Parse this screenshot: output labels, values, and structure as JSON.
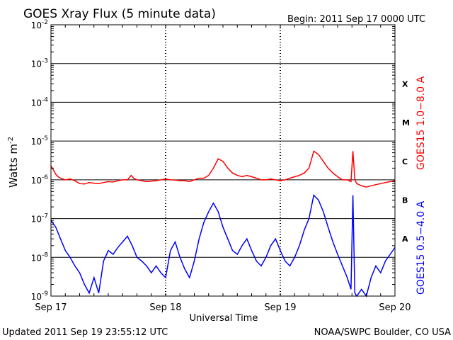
{
  "header": {
    "title": "GOES Xray Flux (5 minute data)",
    "begin": "Begin:  2011 Sep 17 0000 UTC"
  },
  "footer": {
    "updated": "Updated 2011 Sep 19 23:55:12 UTC",
    "credit": "NOAA/SWPC Boulder, CO USA"
  },
  "colors": {
    "long_channel": "#ff0000",
    "short_channel": "#0000ff",
    "grid": "#000000"
  },
  "chart_data": {
    "type": "line",
    "title": "GOES Xray Flux (5 minute data)",
    "xlabel": "Universal Time",
    "ylabel_base": "Watts m",
    "ylabel_exp": "-2",
    "y_scale": "log",
    "ylim": [
      1e-09,
      0.01
    ],
    "xlim": [
      0,
      72
    ],
    "x_unit": "hours since 2011 Sep 17 0000 UTC",
    "x_ticks": [
      {
        "x": 0,
        "label": "Sep 17"
      },
      {
        "x": 24,
        "label": "Sep 18"
      },
      {
        "x": 48,
        "label": "Sep 19"
      },
      {
        "x": 72,
        "label": "Sep 20"
      }
    ],
    "y_ticks": [
      {
        "exp": -9
      },
      {
        "exp": -8
      },
      {
        "exp": -7
      },
      {
        "exp": -6
      },
      {
        "exp": -5
      },
      {
        "exp": -4
      },
      {
        "exp": -3
      },
      {
        "exp": -2
      }
    ],
    "flare_classes": [
      {
        "label": "X",
        "y": 0.0003
      },
      {
        "label": "M",
        "y": 3e-05
      },
      {
        "label": "C",
        "y": 3e-06
      },
      {
        "label": "B",
        "y": 3e-07
      },
      {
        "label": "A",
        "y": 3e-08
      }
    ],
    "grid": true,
    "series": [
      {
        "name": "GOES15 1.0−8.0 A",
        "color": "#ff0000",
        "points": [
          [
            0,
            2.3e-06
          ],
          [
            0.5,
            1.8e-06
          ],
          [
            1,
            1.4e-06
          ],
          [
            1.5,
            1.2e-06
          ],
          [
            2,
            1.1e-06
          ],
          [
            3,
            1e-06
          ],
          [
            4,
            1.05e-06
          ],
          [
            5,
            9.5e-07
          ],
          [
            6,
            8e-07
          ],
          [
            7,
            7.8e-07
          ],
          [
            8,
            8.5e-07
          ],
          [
            9,
            8.2e-07
          ],
          [
            10,
            8e-07
          ],
          [
            11,
            8.5e-07
          ],
          [
            12,
            9e-07
          ],
          [
            13,
            8.8e-07
          ],
          [
            14,
            9.5e-07
          ],
          [
            15,
            1e-06
          ],
          [
            16,
            1e-06
          ],
          [
            16.8,
            1.3e-06
          ],
          [
            17.3,
            1.1e-06
          ],
          [
            18,
            1e-06
          ],
          [
            19,
            9.5e-07
          ],
          [
            20,
            9e-07
          ],
          [
            21,
            9.2e-07
          ],
          [
            22,
            9.5e-07
          ],
          [
            23,
            1e-06
          ],
          [
            24,
            1.05e-06
          ],
          [
            25,
            1e-06
          ],
          [
            26,
            9.8e-07
          ],
          [
            27,
            9.5e-07
          ],
          [
            28,
            9.5e-07
          ],
          [
            29,
            9e-07
          ],
          [
            30,
            1e-06
          ],
          [
            31,
            1.1e-06
          ],
          [
            32,
            1.1e-06
          ],
          [
            33,
            1.3e-06
          ],
          [
            34,
            2e-06
          ],
          [
            35,
            3.5e-06
          ],
          [
            36,
            3e-06
          ],
          [
            37,
            2e-06
          ],
          [
            38,
            1.5e-06
          ],
          [
            39,
            1.3e-06
          ],
          [
            40,
            1.2e-06
          ],
          [
            41,
            1.3e-06
          ],
          [
            42,
            1.2e-06
          ],
          [
            43,
            1.1e-06
          ],
          [
            44,
            1e-06
          ],
          [
            45,
            1e-06
          ],
          [
            46,
            1.05e-06
          ],
          [
            47,
            1e-06
          ],
          [
            48,
            9.5e-07
          ],
          [
            49,
            1e-06
          ],
          [
            50,
            1.1e-06
          ],
          [
            51,
            1.2e-06
          ],
          [
            52,
            1.3e-06
          ],
          [
            53,
            1.5e-06
          ],
          [
            54,
            2e-06
          ],
          [
            55,
            5.5e-06
          ],
          [
            56,
            4.5e-06
          ],
          [
            57,
            3e-06
          ],
          [
            58,
            2e-06
          ],
          [
            59,
            1.5e-06
          ],
          [
            60,
            1.2e-06
          ],
          [
            61,
            1e-06
          ],
          [
            62,
            1e-06
          ],
          [
            62.8,
            9e-07
          ],
          [
            63.2,
            5.5e-06
          ],
          [
            63.6,
            1e-06
          ],
          [
            64,
            8e-07
          ],
          [
            65,
            7e-07
          ],
          [
            66,
            6.5e-07
          ],
          [
            67,
            7e-07
          ],
          [
            68,
            7.5e-07
          ],
          [
            69,
            8e-07
          ],
          [
            70,
            8.5e-07
          ],
          [
            71,
            9e-07
          ],
          [
            72,
            9.5e-07
          ]
        ]
      },
      {
        "name": "GOES15 0.5−4.0 A",
        "color": "#0000ff",
        "points": [
          [
            0,
            9e-08
          ],
          [
            1,
            6e-08
          ],
          [
            2,
            3e-08
          ],
          [
            3,
            1.5e-08
          ],
          [
            4,
            1e-08
          ],
          [
            5,
            6e-09
          ],
          [
            6,
            4e-09
          ],
          [
            7,
            2e-09
          ],
          [
            8,
            1.2e-09
          ],
          [
            9,
            3e-09
          ],
          [
            10,
            1.2e-09
          ],
          [
            11,
            8e-09
          ],
          [
            12,
            1.5e-08
          ],
          [
            13,
            1.2e-08
          ],
          [
            14,
            1.8e-08
          ],
          [
            15,
            2.5e-08
          ],
          [
            16,
            3.5e-08
          ],
          [
            17,
            2e-08
          ],
          [
            18,
            1e-08
          ],
          [
            19,
            8e-09
          ],
          [
            20,
            6e-09
          ],
          [
            21,
            4e-09
          ],
          [
            22,
            6e-09
          ],
          [
            23,
            4e-09
          ],
          [
            24,
            3e-09
          ],
          [
            25,
            1.5e-08
          ],
          [
            26,
            2.5e-08
          ],
          [
            27,
            1e-08
          ],
          [
            28,
            5e-09
          ],
          [
            29,
            3e-09
          ],
          [
            30,
            8e-09
          ],
          [
            31,
            3e-08
          ],
          [
            32,
            8e-08
          ],
          [
            33,
            1.5e-07
          ],
          [
            34,
            2.5e-07
          ],
          [
            35,
            1.5e-07
          ],
          [
            36,
            6e-08
          ],
          [
            37,
            3e-08
          ],
          [
            38,
            1.5e-08
          ],
          [
            39,
            1.2e-08
          ],
          [
            40,
            2e-08
          ],
          [
            41,
            3e-08
          ],
          [
            42,
            1.5e-08
          ],
          [
            43,
            8e-09
          ],
          [
            44,
            6e-09
          ],
          [
            45,
            1e-08
          ],
          [
            46,
            2e-08
          ],
          [
            47,
            3e-08
          ],
          [
            48,
            1.5e-08
          ],
          [
            49,
            8e-09
          ],
          [
            50,
            6e-09
          ],
          [
            51,
            1e-08
          ],
          [
            52,
            2e-08
          ],
          [
            53,
            5e-08
          ],
          [
            54,
            1e-07
          ],
          [
            55,
            4e-07
          ],
          [
            56,
            3e-07
          ],
          [
            57,
            1.5e-07
          ],
          [
            58,
            6e-08
          ],
          [
            59,
            2.5e-08
          ],
          [
            60,
            1.2e-08
          ],
          [
            61,
            6e-09
          ],
          [
            62,
            3e-09
          ],
          [
            62.8,
            1.5e-09
          ],
          [
            63.2,
            4e-07
          ],
          [
            63.6,
            1.2e-09
          ],
          [
            64,
            1e-09
          ],
          [
            65,
            1.5e-09
          ],
          [
            66,
            1e-09
          ],
          [
            67,
            3e-09
          ],
          [
            68,
            6e-09
          ],
          [
            69,
            4e-09
          ],
          [
            70,
            8e-09
          ],
          [
            71,
            1.2e-08
          ],
          [
            72,
            1.8e-08
          ]
        ]
      }
    ],
    "legend": {
      "placement": "right (vertical text)",
      "items": [
        "GOES15 1.0−8.0 A",
        "GOES15 0.5−4.0 A"
      ]
    }
  }
}
